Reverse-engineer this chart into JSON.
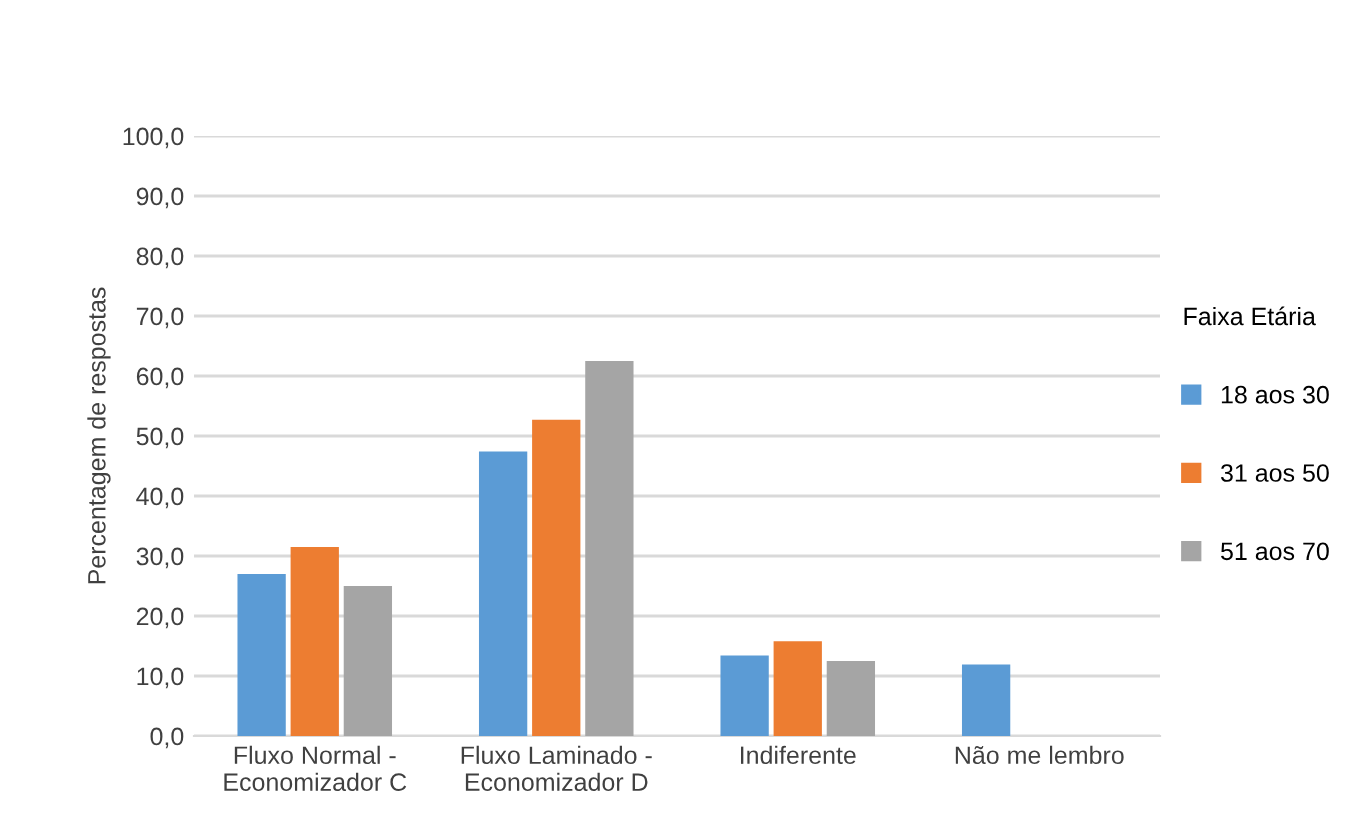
{
  "chart_data": {
    "type": "bar",
    "ylabel": "Percentagem de respostas",
    "legend_title": "Faixa Etária",
    "categories": [
      "Fluxo Normal -\nEconomizador C",
      "Fluxo Laminado -\nEconomizador D",
      "Indiferente",
      "Não me lembro"
    ],
    "series": [
      {
        "name": "18 aos 30",
        "color": "#5b9bd5",
        "values": [
          27.0,
          47.4,
          13.4,
          11.9
        ]
      },
      {
        "name": "31 aos 50",
        "color": "#ed7d31",
        "values": [
          31.5,
          52.7,
          15.8,
          0
        ]
      },
      {
        "name": "51 aos 70",
        "color": "#a5a5a5",
        "values": [
          25.0,
          62.5,
          12.5,
          0
        ]
      }
    ],
    "ylim": [
      0,
      100
    ],
    "yticks": [
      {
        "value": 0,
        "label": "0,0"
      },
      {
        "value": 10,
        "label": "10,0"
      },
      {
        "value": 20,
        "label": "20,0"
      },
      {
        "value": 30,
        "label": "30,0"
      },
      {
        "value": 40,
        "label": "40,0"
      },
      {
        "value": 50,
        "label": "50,0"
      },
      {
        "value": 60,
        "label": "60,0"
      },
      {
        "value": 70,
        "label": "70,0"
      },
      {
        "value": 80,
        "label": "80,0"
      },
      {
        "value": 90,
        "label": "90,0"
      },
      {
        "value": 100,
        "label": "100,0"
      }
    ],
    "grid": "y",
    "legend": "right"
  }
}
